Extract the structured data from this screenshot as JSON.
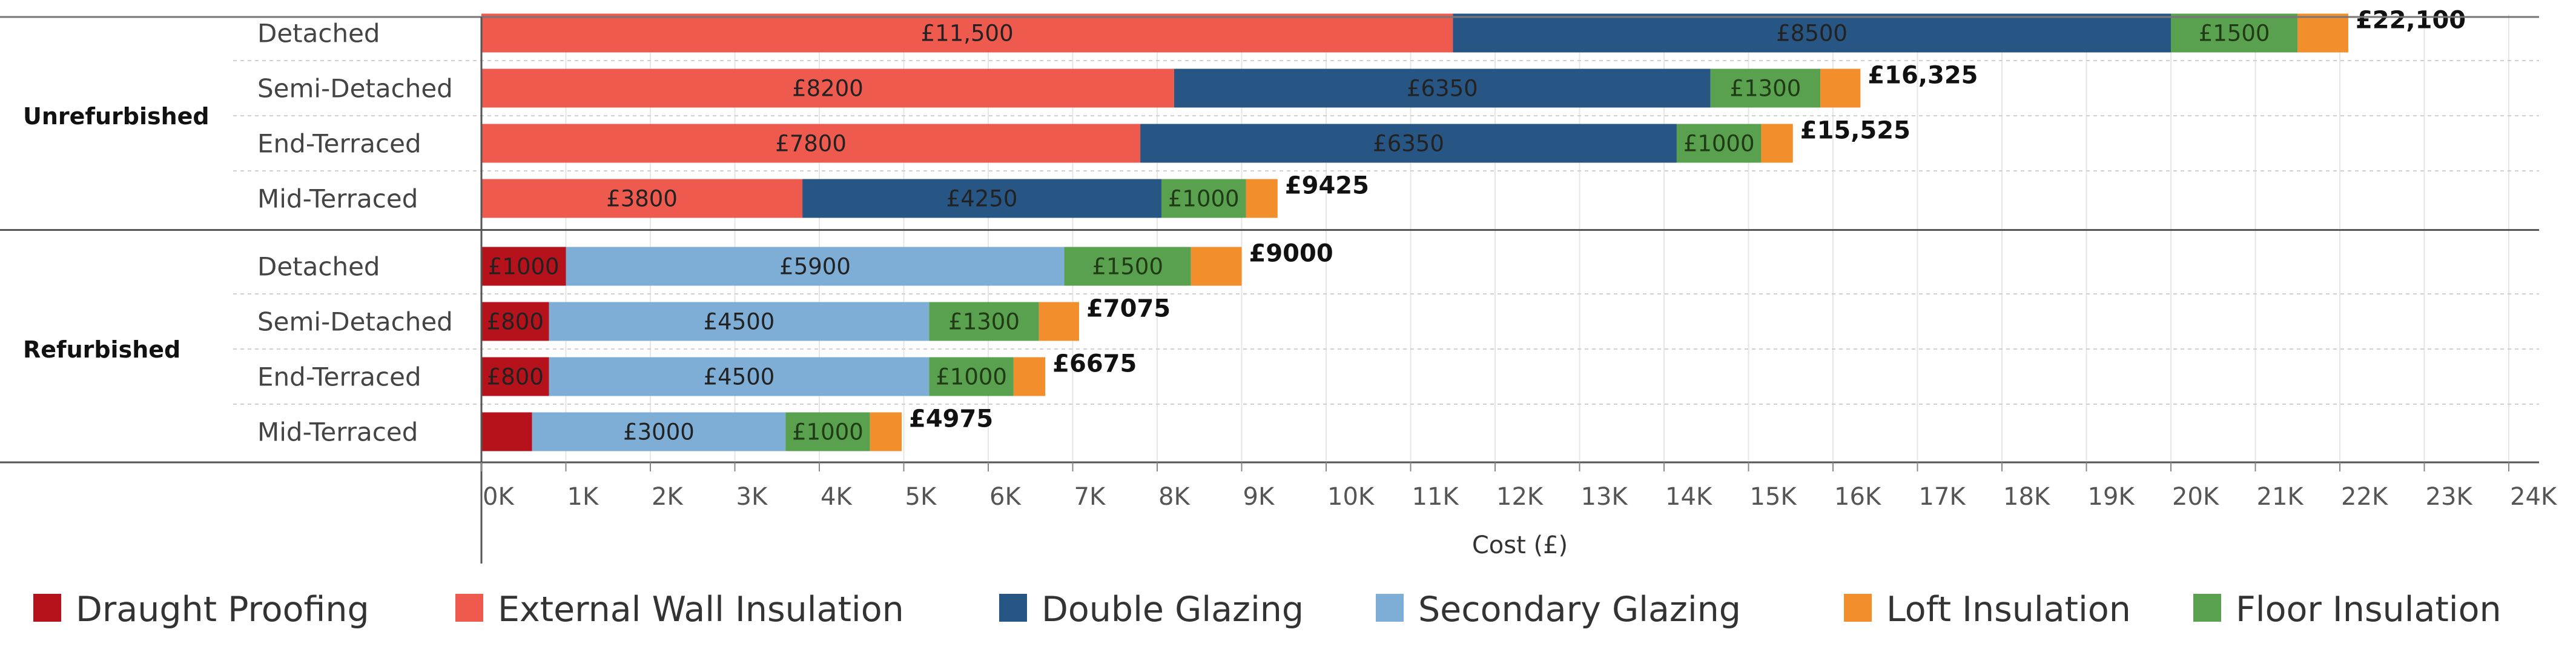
{
  "chart_data": {
    "type": "bar",
    "orientation": "horizontal",
    "stacked": true,
    "title": "",
    "xlabel": "Cost (£)",
    "ylabel": "",
    "xlim": [
      0,
      24000
    ],
    "ticks": [
      0,
      1000,
      2000,
      3000,
      4000,
      5000,
      6000,
      7000,
      8000,
      9000,
      10000,
      11000,
      12000,
      13000,
      14000,
      15000,
      16000,
      17000,
      18000,
      19000,
      20000,
      21000,
      22000,
      23000,
      24000
    ],
    "tick_labels": [
      "0K",
      "1K",
      "2K",
      "3K",
      "4K",
      "5K",
      "6K",
      "7K",
      "8K",
      "9K",
      "10K",
      "11K",
      "12K",
      "13K",
      "14K",
      "15K",
      "16K",
      "17K",
      "18K",
      "19K",
      "20K",
      "21K",
      "22K",
      "23K",
      "24K"
    ],
    "legend": [
      {
        "name": "Draught Proofing",
        "color": "#b5121b"
      },
      {
        "name": "External Wall Insulation",
        "color": "#ef5a4f"
      },
      {
        "name": "Double Glazing",
        "color": "#275584"
      },
      {
        "name": "Secondary Glazing",
        "color": "#7eadd6"
      },
      {
        "name": "Loft Insulation",
        "color": "#f28e2c"
      },
      {
        "name": "Floor Insulation",
        "color": "#59a14f"
      }
    ],
    "groups": [
      {
        "name": "Unrefurbished",
        "rows": [
          {
            "category": "Detached",
            "total_label": "£22,100",
            "segments": [
              {
                "series": "External Wall Insulation",
                "value": 11500,
                "label": "£11,500"
              },
              {
                "series": "Double Glazing",
                "value": 8500,
                "label": "£8500"
              },
              {
                "series": "Floor Insulation",
                "value": 1500,
                "label": "£1500"
              },
              {
                "series": "Loft Insulation",
                "value": 600,
                "label": ""
              }
            ]
          },
          {
            "category": "Semi-Detached",
            "total_label": "£16,325",
            "segments": [
              {
                "series": "External Wall Insulation",
                "value": 8200,
                "label": "£8200"
              },
              {
                "series": "Double Glazing",
                "value": 6350,
                "label": "£6350"
              },
              {
                "series": "Floor Insulation",
                "value": 1300,
                "label": "£1300"
              },
              {
                "series": "Loft Insulation",
                "value": 475,
                "label": ""
              }
            ]
          },
          {
            "category": "End-Terraced",
            "total_label": "£15,525",
            "segments": [
              {
                "series": "External Wall Insulation",
                "value": 7800,
                "label": "£7800"
              },
              {
                "series": "Double Glazing",
                "value": 6350,
                "label": "£6350"
              },
              {
                "series": "Floor Insulation",
                "value": 1000,
                "label": "£1000"
              },
              {
                "series": "Loft Insulation",
                "value": 375,
                "label": ""
              }
            ]
          },
          {
            "category": "Mid-Terraced",
            "total_label": "£9425",
            "segments": [
              {
                "series": "External Wall Insulation",
                "value": 3800,
                "label": "£3800"
              },
              {
                "series": "Double Glazing",
                "value": 4250,
                "label": "£4250"
              },
              {
                "series": "Floor Insulation",
                "value": 1000,
                "label": "£1000"
              },
              {
                "series": "Loft Insulation",
                "value": 375,
                "label": ""
              }
            ]
          }
        ]
      },
      {
        "name": "Refurbished",
        "rows": [
          {
            "category": "Detached",
            "total_label": "£9000",
            "segments": [
              {
                "series": "Draught Proofing",
                "value": 1000,
                "label": "£1000"
              },
              {
                "series": "Secondary Glazing",
                "value": 5900,
                "label": "£5900"
              },
              {
                "series": "Floor Insulation",
                "value": 1500,
                "label": "£1500"
              },
              {
                "series": "Loft Insulation",
                "value": 600,
                "label": ""
              }
            ]
          },
          {
            "category": "Semi-Detached",
            "total_label": "£7075",
            "segments": [
              {
                "series": "Draught Proofing",
                "value": 800,
                "label": "£800"
              },
              {
                "series": "Secondary Glazing",
                "value": 4500,
                "label": "£4500"
              },
              {
                "series": "Floor Insulation",
                "value": 1300,
                "label": "£1300"
              },
              {
                "series": "Loft Insulation",
                "value": 475,
                "label": ""
              }
            ]
          },
          {
            "category": "End-Terraced",
            "total_label": "£6675",
            "segments": [
              {
                "series": "Draught Proofing",
                "value": 800,
                "label": "£800"
              },
              {
                "series": "Secondary Glazing",
                "value": 4500,
                "label": "£4500"
              },
              {
                "series": "Floor Insulation",
                "value": 1000,
                "label": "£1000"
              },
              {
                "series": "Loft Insulation",
                "value": 375,
                "label": ""
              }
            ]
          },
          {
            "category": "Mid-Terraced",
            "total_label": "£4975",
            "segments": [
              {
                "series": "Draught Proofing",
                "value": 600,
                "label": ""
              },
              {
                "series": "Secondary Glazing",
                "value": 3000,
                "label": "£3000"
              },
              {
                "series": "Floor Insulation",
                "value": 1000,
                "label": "£1000"
              },
              {
                "series": "Loft Insulation",
                "value": 375,
                "label": ""
              }
            ]
          }
        ]
      }
    ]
  }
}
